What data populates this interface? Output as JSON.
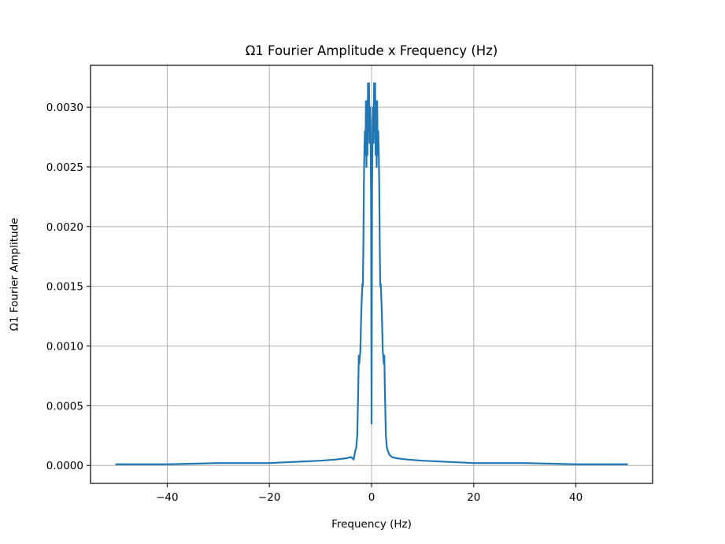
{
  "chart_data": {
    "type": "line",
    "title": "Ω1 Fourier Amplitude x Frequency (Hz)",
    "xlabel": "Frequency (Hz)",
    "ylabel": "Ω1 Fourier Amplitude",
    "xlim": [
      -55,
      55
    ],
    "ylim": [
      -0.00015,
      0.00335
    ],
    "x_ticks": [
      -40,
      -20,
      0,
      20,
      40
    ],
    "x_tick_labels": [
      "−40",
      "−20",
      "0",
      "20",
      "40"
    ],
    "y_ticks": [
      0,
      0.0005,
      0.001,
      0.0015,
      0.002,
      0.0025,
      0.003
    ],
    "y_tick_labels": [
      "0.0000",
      "0.0005",
      "0.0010",
      "0.0015",
      "0.0020",
      "0.0025",
      "0.0030"
    ],
    "grid": true,
    "color": "#1f77b4",
    "series": [
      {
        "x": [
          -50,
          -40,
          -30,
          -20,
          -15,
          -10,
          -7,
          -5,
          -4,
          -3.5,
          -3.2,
          -3,
          -2.8,
          -2.6,
          -2.5,
          -2.4,
          -2.3,
          -2.2,
          -2.0,
          -1.8,
          -1.7,
          -1.6,
          -1.5,
          -1.4,
          -1.3,
          -1.2,
          -1.1,
          -1.0,
          -0.9,
          -0.8,
          -0.7,
          -0.6,
          -0.5,
          -0.4,
          -0.3,
          -0.2,
          -0.1,
          0,
          0.1,
          0.2,
          0.3,
          0.4,
          0.5,
          0.6,
          0.7,
          0.8,
          0.9,
          1.0,
          1.1,
          1.2,
          1.3,
          1.4,
          1.5,
          1.6,
          1.7,
          1.8,
          2.0,
          2.2,
          2.3,
          2.4,
          2.5,
          2.6,
          2.8,
          3.0,
          3.2,
          3.5,
          4,
          5,
          7,
          10,
          15,
          20,
          30,
          40,
          50
        ],
        "y": [
          1e-05,
          1e-05,
          2e-05,
          2e-05,
          3e-05,
          4e-05,
          5e-05,
          6e-05,
          7e-05,
          5e-05,
          0.00012,
          0.00015,
          0.00025,
          0.00065,
          0.00092,
          0.00085,
          0.00091,
          0.00095,
          0.0013,
          0.00152,
          0.0015,
          0.00185,
          0.00235,
          0.00265,
          0.0028,
          0.0026,
          0.00305,
          0.0025,
          0.00305,
          0.0026,
          0.0032,
          0.0028,
          0.0032,
          0.0027,
          0.003,
          0.0028,
          0.0023,
          0.00035,
          0.0023,
          0.0028,
          0.003,
          0.0027,
          0.0032,
          0.0028,
          0.0032,
          0.0026,
          0.00305,
          0.0025,
          0.00305,
          0.0026,
          0.0028,
          0.00265,
          0.00235,
          0.00185,
          0.0015,
          0.00152,
          0.0013,
          0.00095,
          0.00091,
          0.00085,
          0.00092,
          0.00065,
          0.00025,
          0.00015,
          0.00012,
          9e-05,
          7e-05,
          6e-05,
          5e-05,
          4e-05,
          3e-05,
          2e-05,
          2e-05,
          1e-05,
          1e-05
        ]
      }
    ]
  }
}
